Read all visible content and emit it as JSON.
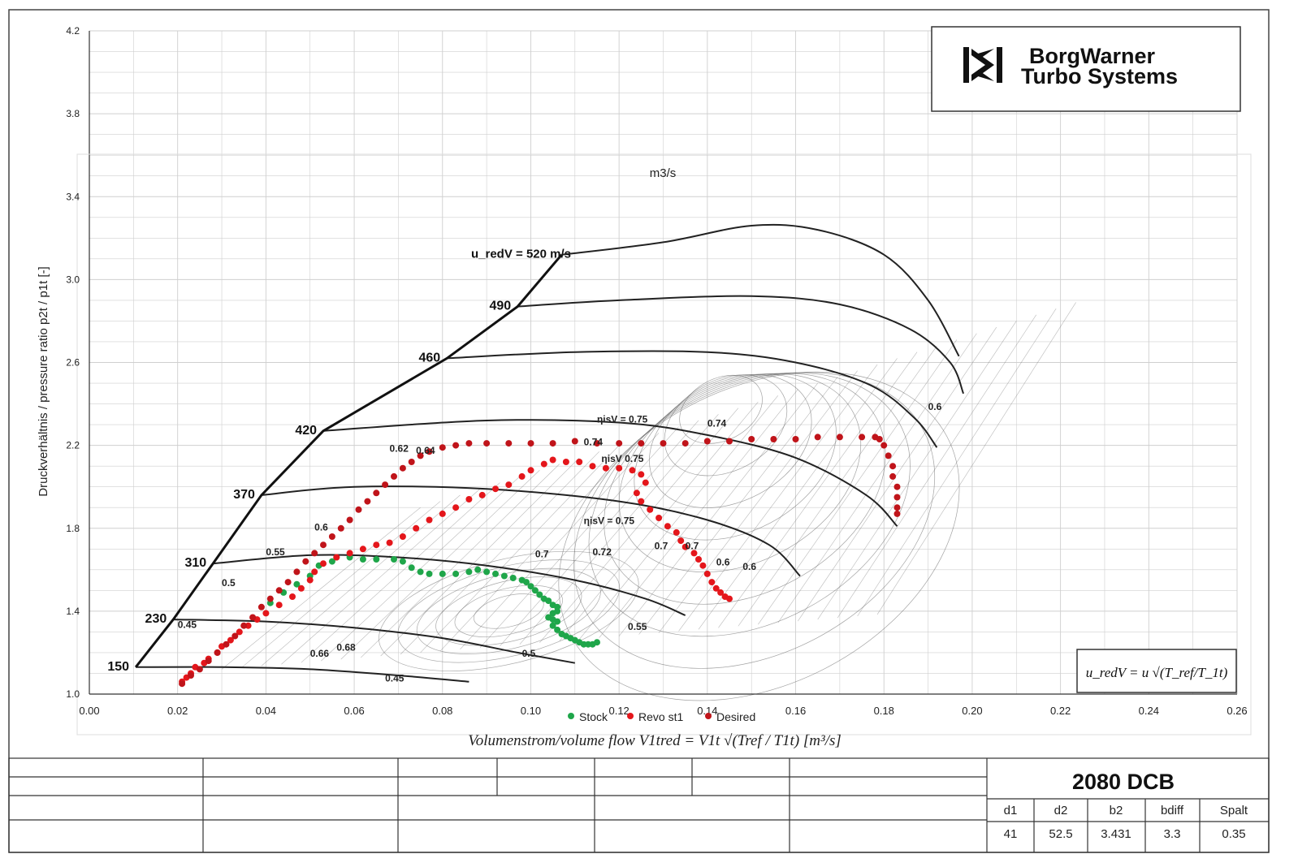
{
  "colors": {
    "stock": "#1fa64a",
    "revo": "#e4161b",
    "desired": "#c0141a",
    "line": "#222222",
    "grid": "#cfcfcf"
  },
  "logo": {
    "line1": "BorgWarner",
    "line2": "Turbo Systems"
  },
  "formula_box": {
    "text": "u_redV = u √(T_ref/T_1t)"
  },
  "overlay_label": "m3/s",
  "title_block": {
    "model": "2080 DCB",
    "headers": [
      "d1",
      "d2",
      "b2",
      "bdiff",
      "Spalt"
    ],
    "values": [
      "41",
      "52.5",
      "3.431",
      "3.3",
      "0.35"
    ]
  },
  "chart_data": {
    "type": "scatter",
    "xlabel": "Volumenstrom/volume  flow   V1tred = V1t √(Tref / T1t)  [m³/s]",
    "ylabel": "Druckverhältnis / pressure ratio    p2t / p1t [-]",
    "xlim": [
      0.0,
      0.26
    ],
    "ylim": [
      1.0,
      4.2
    ],
    "x_ticks": [
      "0.00",
      "0.02",
      "0.04",
      "0.06",
      "0.08",
      "0.10",
      "0.12",
      "0.14",
      "0.16",
      "0.18",
      "0.20",
      "0.22",
      "0.24",
      "0.26"
    ],
    "y_ticks": [
      "1.0",
      "1.4",
      "1.8",
      "2.2",
      "2.6",
      "3.0",
      "3.4",
      "3.8",
      "4.2"
    ],
    "grid": true,
    "legend_position": "bottom-center",
    "surge_line": [
      [
        0.0105,
        1.13
      ],
      [
        0.019,
        1.36
      ],
      [
        0.028,
        1.63
      ],
      [
        0.039,
        1.96
      ],
      [
        0.053,
        2.27
      ],
      [
        0.081,
        2.62
      ],
      [
        0.097,
        2.87
      ],
      [
        0.107,
        3.12
      ]
    ],
    "speed_lines": [
      {
        "label": "150",
        "points": [
          [
            0.0105,
            1.13
          ],
          [
            0.03,
            1.13
          ],
          [
            0.05,
            1.12
          ],
          [
            0.07,
            1.09
          ],
          [
            0.086,
            1.06
          ]
        ]
      },
      {
        "label": "230",
        "points": [
          [
            0.019,
            1.36
          ],
          [
            0.04,
            1.35
          ],
          [
            0.06,
            1.32
          ],
          [
            0.08,
            1.27
          ],
          [
            0.097,
            1.2
          ],
          [
            0.11,
            1.15
          ]
        ]
      },
      {
        "label": "310",
        "points": [
          [
            0.028,
            1.63
          ],
          [
            0.05,
            1.67
          ],
          [
            0.07,
            1.66
          ],
          [
            0.09,
            1.62
          ],
          [
            0.11,
            1.55
          ],
          [
            0.126,
            1.46
          ],
          [
            0.135,
            1.38
          ]
        ]
      },
      {
        "label": "370",
        "points": [
          [
            0.039,
            1.96
          ],
          [
            0.06,
            2.0
          ],
          [
            0.09,
            1.99
          ],
          [
            0.12,
            1.93
          ],
          [
            0.14,
            1.84
          ],
          [
            0.154,
            1.72
          ],
          [
            0.161,
            1.57
          ]
        ]
      },
      {
        "label": "420",
        "points": [
          [
            0.053,
            2.27
          ],
          [
            0.09,
            2.32
          ],
          [
            0.12,
            2.31
          ],
          [
            0.14,
            2.25
          ],
          [
            0.16,
            2.14
          ],
          [
            0.176,
            1.96
          ],
          [
            0.183,
            1.81
          ]
        ]
      },
      {
        "label": "460",
        "points": [
          [
            0.081,
            2.62
          ],
          [
            0.11,
            2.65
          ],
          [
            0.14,
            2.65
          ],
          [
            0.16,
            2.6
          ],
          [
            0.177,
            2.49
          ],
          [
            0.187,
            2.33
          ],
          [
            0.192,
            2.19
          ]
        ]
      },
      {
        "label": "490",
        "points": [
          [
            0.097,
            2.87
          ],
          [
            0.12,
            2.9
          ],
          [
            0.15,
            2.92
          ],
          [
            0.17,
            2.88
          ],
          [
            0.186,
            2.76
          ],
          [
            0.195,
            2.6
          ],
          [
            0.198,
            2.45
          ]
        ]
      },
      {
        "label": "u_redV = 520 m/s",
        "points": [
          [
            0.107,
            3.12
          ],
          [
            0.13,
            3.18
          ],
          [
            0.15,
            3.26
          ],
          [
            0.165,
            3.24
          ],
          [
            0.18,
            3.12
          ],
          [
            0.19,
            2.9
          ],
          [
            0.197,
            2.63
          ]
        ]
      }
    ],
    "efficiency_labels": [
      "ηisV = 0.75",
      "0.74",
      "0.74",
      "ηisV 0.75",
      "ηisV = 0.75",
      "0.62",
      "0.64",
      "0.6",
      "0.55",
      "0.5",
      "0.45",
      "0.66",
      "0.68",
      "0.7",
      "0.72",
      "0.7",
      "0.7",
      "0.6",
      "0.6",
      "0.55",
      "0.5",
      "0.45",
      "0.6"
    ],
    "series": [
      {
        "name": "Stock",
        "color": "#1fa64a",
        "points": [
          [
            0.041,
            1.44
          ],
          [
            0.044,
            1.49
          ],
          [
            0.047,
            1.53
          ],
          [
            0.05,
            1.57
          ],
          [
            0.052,
            1.62
          ],
          [
            0.055,
            1.64
          ],
          [
            0.056,
            1.66
          ],
          [
            0.059,
            1.66
          ],
          [
            0.062,
            1.65
          ],
          [
            0.065,
            1.65
          ],
          [
            0.069,
            1.65
          ],
          [
            0.071,
            1.64
          ],
          [
            0.073,
            1.61
          ],
          [
            0.075,
            1.59
          ],
          [
            0.077,
            1.58
          ],
          [
            0.08,
            1.58
          ],
          [
            0.083,
            1.58
          ],
          [
            0.086,
            1.59
          ],
          [
            0.088,
            1.6
          ],
          [
            0.09,
            1.59
          ],
          [
            0.092,
            1.58
          ],
          [
            0.094,
            1.57
          ],
          [
            0.096,
            1.56
          ],
          [
            0.098,
            1.55
          ],
          [
            0.099,
            1.54
          ],
          [
            0.1,
            1.52
          ],
          [
            0.101,
            1.5
          ],
          [
            0.102,
            1.48
          ],
          [
            0.103,
            1.46
          ],
          [
            0.104,
            1.45
          ],
          [
            0.105,
            1.43
          ],
          [
            0.106,
            1.42
          ],
          [
            0.106,
            1.4
          ],
          [
            0.105,
            1.39
          ],
          [
            0.104,
            1.37
          ],
          [
            0.105,
            1.36
          ],
          [
            0.106,
            1.35
          ],
          [
            0.105,
            1.33
          ],
          [
            0.106,
            1.31
          ],
          [
            0.107,
            1.29
          ],
          [
            0.108,
            1.28
          ],
          [
            0.109,
            1.27
          ],
          [
            0.11,
            1.26
          ],
          [
            0.111,
            1.25
          ],
          [
            0.112,
            1.24
          ],
          [
            0.113,
            1.24
          ],
          [
            0.114,
            1.24
          ],
          [
            0.115,
            1.25
          ]
        ]
      },
      {
        "name": "Revo st1",
        "color": "#e4161b",
        "points": [
          [
            0.021,
            1.06
          ],
          [
            0.022,
            1.08
          ],
          [
            0.023,
            1.1
          ],
          [
            0.024,
            1.13
          ],
          [
            0.026,
            1.15
          ],
          [
            0.027,
            1.17
          ],
          [
            0.029,
            1.2
          ],
          [
            0.03,
            1.23
          ],
          [
            0.032,
            1.26
          ],
          [
            0.034,
            1.3
          ],
          [
            0.036,
            1.33
          ],
          [
            0.038,
            1.36
          ],
          [
            0.04,
            1.39
          ],
          [
            0.043,
            1.43
          ],
          [
            0.046,
            1.47
          ],
          [
            0.048,
            1.51
          ],
          [
            0.05,
            1.55
          ],
          [
            0.051,
            1.59
          ],
          [
            0.053,
            1.63
          ],
          [
            0.056,
            1.66
          ],
          [
            0.059,
            1.68
          ],
          [
            0.062,
            1.7
          ],
          [
            0.065,
            1.72
          ],
          [
            0.068,
            1.73
          ],
          [
            0.071,
            1.76
          ],
          [
            0.074,
            1.8
          ],
          [
            0.077,
            1.84
          ],
          [
            0.08,
            1.87
          ],
          [
            0.083,
            1.9
          ],
          [
            0.086,
            1.94
          ],
          [
            0.089,
            1.96
          ],
          [
            0.092,
            1.99
          ],
          [
            0.095,
            2.01
          ],
          [
            0.098,
            2.05
          ],
          [
            0.1,
            2.08
          ],
          [
            0.103,
            2.11
          ],
          [
            0.105,
            2.13
          ],
          [
            0.108,
            2.12
          ],
          [
            0.111,
            2.12
          ],
          [
            0.114,
            2.1
          ],
          [
            0.117,
            2.09
          ],
          [
            0.12,
            2.09
          ],
          [
            0.123,
            2.08
          ],
          [
            0.125,
            2.06
          ],
          [
            0.126,
            2.02
          ],
          [
            0.124,
            1.97
          ],
          [
            0.125,
            1.93
          ],
          [
            0.127,
            1.89
          ],
          [
            0.129,
            1.85
          ],
          [
            0.131,
            1.81
          ],
          [
            0.133,
            1.78
          ],
          [
            0.134,
            1.74
          ],
          [
            0.135,
            1.71
          ],
          [
            0.137,
            1.68
          ],
          [
            0.138,
            1.65
          ],
          [
            0.139,
            1.62
          ],
          [
            0.14,
            1.58
          ],
          [
            0.141,
            1.54
          ],
          [
            0.142,
            1.51
          ],
          [
            0.143,
            1.49
          ],
          [
            0.144,
            1.47
          ],
          [
            0.145,
            1.46
          ]
        ]
      },
      {
        "name": "Desired",
        "color": "#c0141a",
        "points": [
          [
            0.021,
            1.05
          ],
          [
            0.023,
            1.09
          ],
          [
            0.025,
            1.12
          ],
          [
            0.027,
            1.16
          ],
          [
            0.029,
            1.2
          ],
          [
            0.031,
            1.24
          ],
          [
            0.033,
            1.28
          ],
          [
            0.035,
            1.33
          ],
          [
            0.037,
            1.37
          ],
          [
            0.039,
            1.42
          ],
          [
            0.041,
            1.46
          ],
          [
            0.043,
            1.5
          ],
          [
            0.045,
            1.54
          ],
          [
            0.047,
            1.59
          ],
          [
            0.049,
            1.64
          ],
          [
            0.051,
            1.68
          ],
          [
            0.053,
            1.72
          ],
          [
            0.055,
            1.76
          ],
          [
            0.057,
            1.8
          ],
          [
            0.059,
            1.84
          ],
          [
            0.061,
            1.89
          ],
          [
            0.063,
            1.93
          ],
          [
            0.065,
            1.97
          ],
          [
            0.067,
            2.01
          ],
          [
            0.069,
            2.05
          ],
          [
            0.071,
            2.09
          ],
          [
            0.073,
            2.12
          ],
          [
            0.075,
            2.15
          ],
          [
            0.077,
            2.17
          ],
          [
            0.08,
            2.19
          ],
          [
            0.083,
            2.2
          ],
          [
            0.086,
            2.21
          ],
          [
            0.09,
            2.21
          ],
          [
            0.095,
            2.21
          ],
          [
            0.1,
            2.21
          ],
          [
            0.105,
            2.21
          ],
          [
            0.11,
            2.22
          ],
          [
            0.115,
            2.21
          ],
          [
            0.12,
            2.21
          ],
          [
            0.125,
            2.21
          ],
          [
            0.13,
            2.21
          ],
          [
            0.135,
            2.21
          ],
          [
            0.14,
            2.22
          ],
          [
            0.145,
            2.22
          ],
          [
            0.15,
            2.23
          ],
          [
            0.155,
            2.23
          ],
          [
            0.16,
            2.23
          ],
          [
            0.165,
            2.24
          ],
          [
            0.17,
            2.24
          ],
          [
            0.175,
            2.24
          ],
          [
            0.178,
            2.24
          ],
          [
            0.179,
            2.23
          ],
          [
            0.18,
            2.2
          ],
          [
            0.181,
            2.15
          ],
          [
            0.182,
            2.1
          ],
          [
            0.182,
            2.05
          ],
          [
            0.183,
            2.0
          ],
          [
            0.183,
            1.95
          ],
          [
            0.183,
            1.9
          ],
          [
            0.183,
            1.87
          ]
        ]
      }
    ]
  }
}
